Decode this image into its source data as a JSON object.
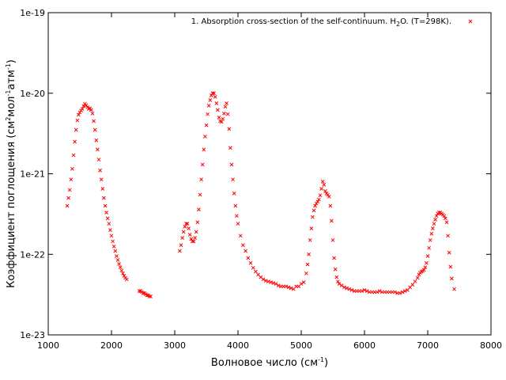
{
  "chart_data": {
    "type": "scatter",
    "title": "",
    "xlabel": {
      "prefix": "Волновое число (см",
      "sup": "-1",
      "suffix": ")"
    },
    "ylabel": {
      "p1": "Коэффициент поглощения (см",
      "s1": "2",
      "p2": "мол",
      "s2": "-1",
      "p3": "атм",
      "s3": "-1",
      "p4": ")"
    },
    "xlim": [
      1000,
      8000
    ],
    "ylim": [
      1e-23,
      1e-19
    ],
    "y_scale": "log",
    "x_ticks": [
      1000,
      2000,
      3000,
      4000,
      5000,
      6000,
      7000,
      8000
    ],
    "x_tick_labels": [
      "1000",
      "2000",
      "3000",
      "4000",
      "5000",
      "6000",
      "7000",
      "8000"
    ],
    "y_ticks": [
      1e-23,
      1e-22,
      1e-21,
      1e-20,
      1e-19
    ],
    "y_tick_labels": [
      "1e-23",
      "1e-22",
      "1e-21",
      "1e-20",
      "1e-19"
    ],
    "grid": false,
    "legend_position": "top-right",
    "series": [
      {
        "name": {
          "before": "1. Absorption cross-section of the self-continuum. H",
          "sub": "2",
          "after": "O. (T=298K)."
        },
        "color": "#ff0000",
        "marker": "x",
        "points": [
          [
            1300,
            4e-22
          ],
          [
            1320,
            5e-22
          ],
          [
            1340,
            6.3e-22
          ],
          [
            1360,
            8.5e-22
          ],
          [
            1380,
            1.15e-21
          ],
          [
            1400,
            1.7e-21
          ],
          [
            1420,
            2.5e-21
          ],
          [
            1440,
            3.5e-21
          ],
          [
            1460,
            4.6e-21
          ],
          [
            1480,
            5.4e-21
          ],
          [
            1500,
            5.8e-21
          ],
          [
            1520,
            6.1e-21
          ],
          [
            1540,
            6.4e-21
          ],
          [
            1560,
            6.9e-21
          ],
          [
            1580,
            7.4e-21
          ],
          [
            1600,
            7.1e-21
          ],
          [
            1620,
            6.7e-21
          ],
          [
            1640,
            6.4e-21
          ],
          [
            1660,
            6.5e-21
          ],
          [
            1680,
            6.2e-21
          ],
          [
            1700,
            5.6e-21
          ],
          [
            1720,
            4.5e-21
          ],
          [
            1740,
            3.5e-21
          ],
          [
            1760,
            2.6e-21
          ],
          [
            1780,
            2e-21
          ],
          [
            1800,
            1.5e-21
          ],
          [
            1820,
            1.1e-21
          ],
          [
            1840,
            8.5e-22
          ],
          [
            1860,
            6.5e-22
          ],
          [
            1880,
            5e-22
          ],
          [
            1900,
            4e-22
          ],
          [
            1920,
            3.3e-22
          ],
          [
            1940,
            2.8e-22
          ],
          [
            1960,
            2.4e-22
          ],
          [
            1980,
            2e-22
          ],
          [
            2000,
            1.7e-22
          ],
          [
            2020,
            1.45e-22
          ],
          [
            2040,
            1.25e-22
          ],
          [
            2060,
            1.1e-22
          ],
          [
            2080,
            9.5e-23
          ],
          [
            2100,
            8.5e-23
          ],
          [
            2120,
            7.6e-23
          ],
          [
            2140,
            6.9e-23
          ],
          [
            2160,
            6.3e-23
          ],
          [
            2180,
            5.8e-23
          ],
          [
            2200,
            5.4e-23
          ],
          [
            2220,
            5.1e-23
          ],
          [
            2240,
            4.9e-23
          ],
          [
            2440,
            3.5e-23
          ],
          [
            2460,
            3.5e-23
          ],
          [
            2480,
            3.4e-23
          ],
          [
            2500,
            3.3e-23
          ],
          [
            2520,
            3.3e-23
          ],
          [
            2540,
            3.2e-23
          ],
          [
            2560,
            3.1e-23
          ],
          [
            2580,
            3.1e-23
          ],
          [
            2600,
            3e-23
          ],
          [
            2620,
            3e-23
          ],
          [
            3080,
            1.1e-22
          ],
          [
            3100,
            1.3e-22
          ],
          [
            3120,
            1.6e-22
          ],
          [
            3140,
            1.9e-22
          ],
          [
            3160,
            2.2e-22
          ],
          [
            3180,
            2.4e-22
          ],
          [
            3200,
            2.4e-22
          ],
          [
            3220,
            2.1e-22
          ],
          [
            3240,
            1.75e-22
          ],
          [
            3260,
            1.55e-22
          ],
          [
            3280,
            1.45e-22
          ],
          [
            3300,
            1.45e-22
          ],
          [
            3320,
            1.6e-22
          ],
          [
            3340,
            1.9e-22
          ],
          [
            3360,
            2.5e-22
          ],
          [
            3380,
            3.6e-22
          ],
          [
            3400,
            5.5e-22
          ],
          [
            3420,
            8.5e-22
          ],
          [
            3440,
            1.3e-21
          ],
          [
            3460,
            2e-21
          ],
          [
            3480,
            2.9e-21
          ],
          [
            3500,
            4e-21
          ],
          [
            3520,
            5.5e-21
          ],
          [
            3540,
            7e-21
          ],
          [
            3560,
            8.2e-21
          ],
          [
            3580,
            9.4e-21
          ],
          [
            3600,
            1e-20
          ],
          [
            3620,
            1e-20
          ],
          [
            3640,
            9e-21
          ],
          [
            3660,
            7.5e-21
          ],
          [
            3680,
            6.2e-21
          ],
          [
            3700,
            5e-21
          ],
          [
            3720,
            4.5e-21
          ],
          [
            3740,
            4.4e-21
          ],
          [
            3760,
            4.8e-21
          ],
          [
            3780,
            5.6e-21
          ],
          [
            3800,
            6.8e-21
          ],
          [
            3820,
            7.5e-21
          ],
          [
            3840,
            5.5e-21
          ],
          [
            3860,
            3.6e-21
          ],
          [
            3880,
            2.1e-21
          ],
          [
            3900,
            1.3e-21
          ],
          [
            3920,
            8.5e-22
          ],
          [
            3940,
            5.7e-22
          ],
          [
            3960,
            4e-22
          ],
          [
            3980,
            3e-22
          ],
          [
            4000,
            2.4e-22
          ],
          [
            4040,
            1.7e-22
          ],
          [
            4080,
            1.3e-22
          ],
          [
            4120,
            1.1e-22
          ],
          [
            4160,
            9e-23
          ],
          [
            4200,
            7.8e-23
          ],
          [
            4240,
            6.8e-23
          ],
          [
            4280,
            6.1e-23
          ],
          [
            4320,
            5.6e-23
          ],
          [
            4360,
            5.2e-23
          ],
          [
            4400,
            4.9e-23
          ],
          [
            4440,
            4.7e-23
          ],
          [
            4480,
            4.6e-23
          ],
          [
            4520,
            4.5e-23
          ],
          [
            4560,
            4.4e-23
          ],
          [
            4600,
            4.3e-23
          ],
          [
            4640,
            4.1e-23
          ],
          [
            4680,
            4e-23
          ],
          [
            4720,
            4e-23
          ],
          [
            4760,
            4e-23
          ],
          [
            4800,
            3.9e-23
          ],
          [
            4840,
            3.8e-23
          ],
          [
            4880,
            3.7e-23
          ],
          [
            4920,
            4e-23
          ],
          [
            4960,
            4e-23
          ],
          [
            5000,
            4.3e-23
          ],
          [
            5040,
            4.5e-23
          ],
          [
            5080,
            5.8e-23
          ],
          [
            5100,
            7.5e-23
          ],
          [
            5120,
            1e-22
          ],
          [
            5140,
            1.5e-22
          ],
          [
            5160,
            2.1e-22
          ],
          [
            5180,
            2.9e-22
          ],
          [
            5200,
            3.5e-22
          ],
          [
            5220,
            4e-22
          ],
          [
            5240,
            4.3e-22
          ],
          [
            5260,
            4.5e-22
          ],
          [
            5280,
            4.8e-22
          ],
          [
            5300,
            5.4e-22
          ],
          [
            5320,
            6.5e-22
          ],
          [
            5340,
            8e-22
          ],
          [
            5360,
            7.3e-22
          ],
          [
            5380,
            6.1e-22
          ],
          [
            5400,
            5.7e-22
          ],
          [
            5420,
            5.5e-22
          ],
          [
            5440,
            5.2e-22
          ],
          [
            5460,
            4e-22
          ],
          [
            5480,
            2.6e-22
          ],
          [
            5500,
            1.5e-22
          ],
          [
            5520,
            9e-23
          ],
          [
            5540,
            6.5e-23
          ],
          [
            5560,
            5.2e-23
          ],
          [
            5580,
            4.6e-23
          ],
          [
            5600,
            4.3e-23
          ],
          [
            5640,
            4.1e-23
          ],
          [
            5680,
            3.9e-23
          ],
          [
            5720,
            3.8e-23
          ],
          [
            5760,
            3.7e-23
          ],
          [
            5800,
            3.6e-23
          ],
          [
            5840,
            3.5e-23
          ],
          [
            5880,
            3.5e-23
          ],
          [
            5920,
            3.5e-23
          ],
          [
            5960,
            3.5e-23
          ],
          [
            6000,
            3.6e-23
          ],
          [
            6040,
            3.5e-23
          ],
          [
            6080,
            3.4e-23
          ],
          [
            6120,
            3.4e-23
          ],
          [
            6160,
            3.4e-23
          ],
          [
            6200,
            3.4e-23
          ],
          [
            6240,
            3.5e-23
          ],
          [
            6280,
            3.4e-23
          ],
          [
            6320,
            3.4e-23
          ],
          [
            6360,
            3.4e-23
          ],
          [
            6400,
            3.4e-23
          ],
          [
            6440,
            3.4e-23
          ],
          [
            6480,
            3.4e-23
          ],
          [
            6520,
            3.3e-23
          ],
          [
            6560,
            3.3e-23
          ],
          [
            6600,
            3.4e-23
          ],
          [
            6640,
            3.5e-23
          ],
          [
            6680,
            3.6e-23
          ],
          [
            6720,
            3.9e-23
          ],
          [
            6760,
            4.2e-23
          ],
          [
            6800,
            4.6e-23
          ],
          [
            6840,
            5.1e-23
          ],
          [
            6860,
            5.6e-23
          ],
          [
            6880,
            5.9e-23
          ],
          [
            6900,
            6.1e-23
          ],
          [
            6920,
            6.2e-23
          ],
          [
            6940,
            6.4e-23
          ],
          [
            6960,
            6.9e-23
          ],
          [
            6980,
            7.8e-23
          ],
          [
            7000,
            9.5e-23
          ],
          [
            7020,
            1.2e-22
          ],
          [
            7040,
            1.5e-22
          ],
          [
            7060,
            1.8e-22
          ],
          [
            7080,
            2.1e-22
          ],
          [
            7100,
            2.4e-22
          ],
          [
            7120,
            2.7e-22
          ],
          [
            7140,
            3e-22
          ],
          [
            7160,
            3.2e-22
          ],
          [
            7180,
            3.3e-22
          ],
          [
            7200,
            3.3e-22
          ],
          [
            7220,
            3.2e-22
          ],
          [
            7240,
            3.1e-22
          ],
          [
            7260,
            3e-22
          ],
          [
            7280,
            2.8e-22
          ],
          [
            7300,
            2.5e-22
          ],
          [
            7320,
            1.7e-22
          ],
          [
            7340,
            1.05e-22
          ],
          [
            7360,
            7e-23
          ],
          [
            7380,
            5e-23
          ],
          [
            7420,
            3.7e-23
          ]
        ]
      }
    ]
  }
}
